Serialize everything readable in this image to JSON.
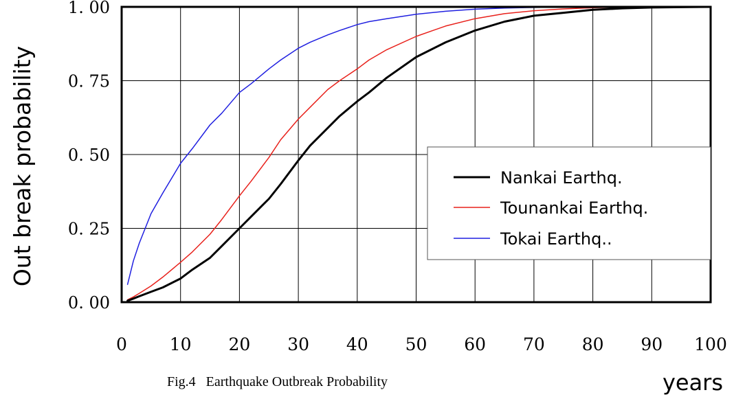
{
  "chart_data": {
    "type": "line",
    "title": "Fig.4   Earthquake Outbreak Probability",
    "xlabel": "years",
    "ylabel": "Out break probability",
    "xlim": [
      0,
      100
    ],
    "ylim": [
      0,
      1
    ],
    "x_ticks": [
      "0",
      "10",
      "20",
      "30",
      "40",
      "50",
      "60",
      "70",
      "80",
      "90",
      "100"
    ],
    "y_ticks": [
      "0. 00",
      "0. 25",
      "0. 50",
      "0. 75",
      "1. 00"
    ],
    "grid": true,
    "legend_position": "center-right",
    "x": [
      1,
      2,
      3,
      5,
      7,
      10,
      12,
      15,
      17,
      20,
      22,
      25,
      27,
      30,
      32,
      35,
      37,
      40,
      42,
      45,
      50,
      55,
      60,
      65,
      70,
      75,
      80,
      85,
      90,
      95,
      100
    ],
    "series": [
      {
        "name": "Nankai Earthq.",
        "color": "#000000",
        "stroke_width": 3,
        "values": [
          0.005,
          0.012,
          0.02,
          0.035,
          0.05,
          0.08,
          0.11,
          0.15,
          0.19,
          0.25,
          0.29,
          0.35,
          0.4,
          0.48,
          0.53,
          0.59,
          0.63,
          0.68,
          0.71,
          0.76,
          0.83,
          0.88,
          0.92,
          0.95,
          0.97,
          0.98,
          0.99,
          0.995,
          0.998,
          0.999,
          1.0
        ]
      },
      {
        "name": "Tounankai Earthq.",
        "color": "#e8201a",
        "stroke_width": 1.5,
        "values": [
          0.008,
          0.018,
          0.03,
          0.055,
          0.085,
          0.135,
          0.17,
          0.23,
          0.28,
          0.36,
          0.41,
          0.49,
          0.55,
          0.62,
          0.66,
          0.72,
          0.75,
          0.79,
          0.82,
          0.855,
          0.9,
          0.935,
          0.96,
          0.977,
          0.987,
          0.993,
          0.997,
          0.999,
          1.0,
          1.0,
          1.0
        ]
      },
      {
        "name": "Tokai Earthq..",
        "color": "#1f1fe0",
        "stroke_width": 1.5,
        "values": [
          0.06,
          0.14,
          0.2,
          0.3,
          0.37,
          0.47,
          0.52,
          0.6,
          0.64,
          0.71,
          0.74,
          0.79,
          0.82,
          0.86,
          0.88,
          0.905,
          0.92,
          0.94,
          0.95,
          0.96,
          0.975,
          0.985,
          0.992,
          0.996,
          0.998,
          0.999,
          1.0,
          1.0,
          1.0,
          1.0,
          1.0
        ]
      }
    ]
  }
}
